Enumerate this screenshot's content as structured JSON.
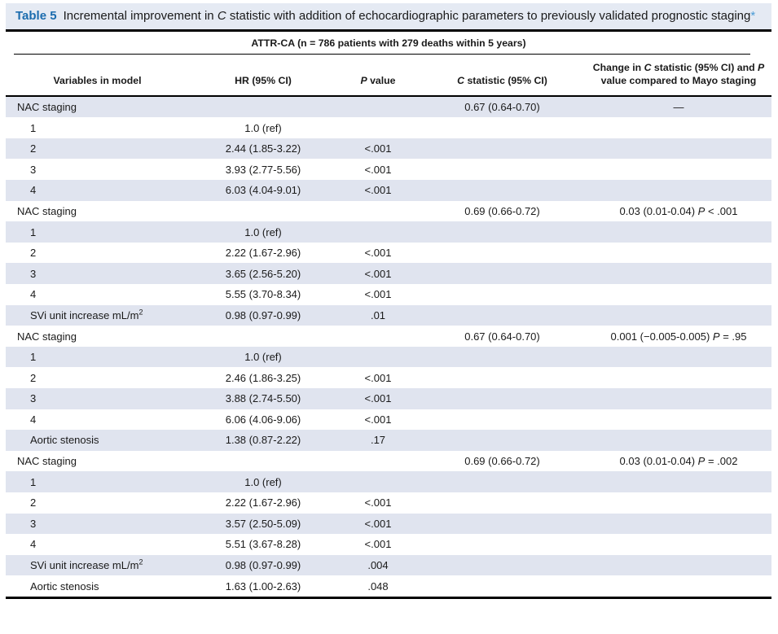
{
  "caption": {
    "label": "Table 5",
    "text": "Incremental improvement in {i}C{/i} statistic with addition of echocardiographic parameters to previously validated prognostic staging",
    "footnote_marker": "*"
  },
  "colors": {
    "caption_label_blue": "#1b6cae",
    "footnote_marker_blue": "#4a9bd5",
    "row_shade": "#e0e4ef",
    "caption_background": "#e5eaf3"
  },
  "table": {
    "spanner": "ATTR-CA (n = 786 patients with 279 deaths within 5 years)",
    "columns": [
      "Variables in model",
      "HR (95% CI)",
      "{i}P{/i} value",
      "{i}C{/i} statistic (95% CI)",
      "Change in {i}C{/i} statistic (95% CI) and {i}P{/i} value compared to Mayo staging"
    ],
    "rows": [
      {
        "variable": "NAC staging",
        "indent": false,
        "hr": "",
        "p_value": "",
        "c_statistic": "0.67 (0.64-0.70)",
        "change": "—"
      },
      {
        "variable": "1",
        "indent": true,
        "hr": "1.0 (ref)",
        "p_value": "",
        "c_statistic": "",
        "change": ""
      },
      {
        "variable": "2",
        "indent": true,
        "hr": "2.44 (1.85-3.22)",
        "p_value": "<.001",
        "c_statistic": "",
        "change": ""
      },
      {
        "variable": "3",
        "indent": true,
        "hr": "3.93 (2.77-5.56)",
        "p_value": "<.001",
        "c_statistic": "",
        "change": ""
      },
      {
        "variable": "4",
        "indent": true,
        "hr": "6.03 (4.04-9.01)",
        "p_value": "<.001",
        "c_statistic": "",
        "change": ""
      },
      {
        "variable": "NAC staging",
        "indent": false,
        "hr": "",
        "p_value": "",
        "c_statistic": "0.69 (0.66-0.72)",
        "change": "0.03 (0.01-0.04) {i}P{/i} < .001"
      },
      {
        "variable": "1",
        "indent": true,
        "hr": "1.0 (ref)",
        "p_value": "",
        "c_statistic": "",
        "change": ""
      },
      {
        "variable": "2",
        "indent": true,
        "hr": "2.22 (1.67-2.96)",
        "p_value": "<.001",
        "c_statistic": "",
        "change": ""
      },
      {
        "variable": "3",
        "indent": true,
        "hr": "3.65 (2.56-5.20)",
        "p_value": "<.001",
        "c_statistic": "",
        "change": ""
      },
      {
        "variable": "4",
        "indent": true,
        "hr": "5.55 (3.70-8.34)",
        "p_value": "<.001",
        "c_statistic": "",
        "change": ""
      },
      {
        "variable": "SVi unit increase mL/m{sup}2{/sup}",
        "indent": true,
        "hr": "0.98 (0.97-0.99)",
        "p_value": ".01",
        "c_statistic": "",
        "change": ""
      },
      {
        "variable": "NAC staging",
        "indent": false,
        "hr": "",
        "p_value": "",
        "c_statistic": "0.67 (0.64-0.70)",
        "change": "0.001 (−0.005-0.005) {i}P{/i} = .95"
      },
      {
        "variable": "1",
        "indent": true,
        "hr": "1.0 (ref)",
        "p_value": "",
        "c_statistic": "",
        "change": ""
      },
      {
        "variable": "2",
        "indent": true,
        "hr": "2.46 (1.86-3.25)",
        "p_value": "<.001",
        "c_statistic": "",
        "change": ""
      },
      {
        "variable": "3",
        "indent": true,
        "hr": "3.88 (2.74-5.50)",
        "p_value": "<.001",
        "c_statistic": "",
        "change": ""
      },
      {
        "variable": "4",
        "indent": true,
        "hr": "6.06 (4.06-9.06)",
        "p_value": "<.001",
        "c_statistic": "",
        "change": ""
      },
      {
        "variable": "Aortic stenosis",
        "indent": true,
        "hr": "1.38 (0.87-2.22)",
        "p_value": ".17",
        "c_statistic": "",
        "change": ""
      },
      {
        "variable": "NAC staging",
        "indent": false,
        "hr": "",
        "p_value": "",
        "c_statistic": "0.69 (0.66-0.72)",
        "change": "0.03 (0.01-0.04) {i}P{/i} = .002"
      },
      {
        "variable": "1",
        "indent": true,
        "hr": "1.0 (ref)",
        "p_value": "",
        "c_statistic": "",
        "change": ""
      },
      {
        "variable": "2",
        "indent": true,
        "hr": "2.22 (1.67-2.96)",
        "p_value": "<.001",
        "c_statistic": "",
        "change": ""
      },
      {
        "variable": "3",
        "indent": true,
        "hr": "3.57 (2.50-5.09)",
        "p_value": "<.001",
        "c_statistic": "",
        "change": ""
      },
      {
        "variable": "4",
        "indent": true,
        "hr": "5.51 (3.67-8.28)",
        "p_value": "<.001",
        "c_statistic": "",
        "change": ""
      },
      {
        "variable": "SVi unit increase mL/m{sup}2{/sup}",
        "indent": true,
        "hr": "0.98 (0.97-0.99)",
        "p_value": ".004",
        "c_statistic": "",
        "change": ""
      },
      {
        "variable": "Aortic stenosis",
        "indent": true,
        "hr": "1.63 (1.00-2.63)",
        "p_value": ".048",
        "c_statistic": "",
        "change": ""
      }
    ]
  }
}
